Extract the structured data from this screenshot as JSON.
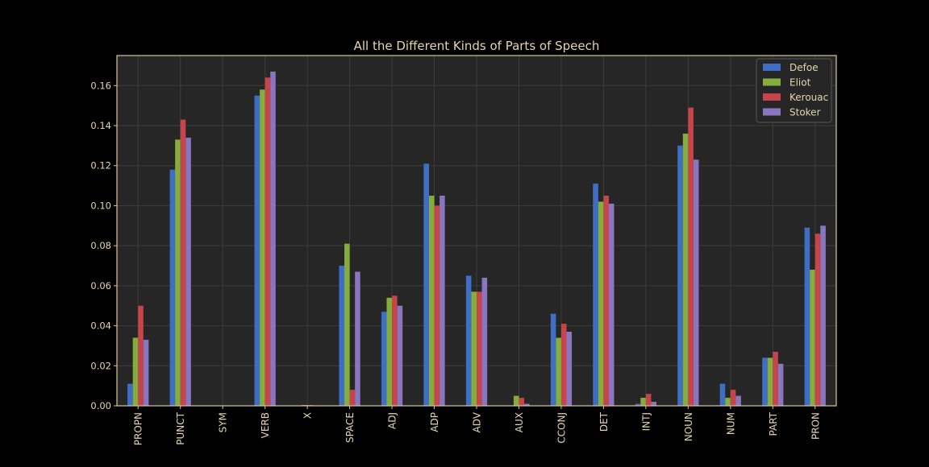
{
  "chart_data": {
    "type": "bar",
    "title": "All the Different Kinds of Parts of Speech",
    "xlabel": "",
    "ylabel": "",
    "ylim": [
      0,
      0.175
    ],
    "yticks": [
      "0.00",
      "0.02",
      "0.04",
      "0.06",
      "0.08",
      "0.10",
      "0.12",
      "0.14",
      "0.16"
    ],
    "grid": true,
    "legend_position": "top-right",
    "categories": [
      "PROPN",
      "PUNCT",
      "SYM",
      "VERB",
      "X",
      "SPACE",
      "ADJ",
      "ADP",
      "ADV",
      "AUX",
      "CCONJ",
      "DET",
      "INTJ",
      "NOUN",
      "NUM",
      "PART",
      "PRON"
    ],
    "series": [
      {
        "name": "Defoe",
        "color": "#3f6fc4",
        "values": [
          0.011,
          0.118,
          0.0,
          0.155,
          0.0,
          0.07,
          0.047,
          0.121,
          0.065,
          0.0,
          0.046,
          0.111,
          0.001,
          0.13,
          0.011,
          0.024,
          0.089
        ]
      },
      {
        "name": "Eliot",
        "color": "#84ad3e",
        "values": [
          0.034,
          0.133,
          0.0,
          0.158,
          0.0004,
          0.081,
          0.054,
          0.105,
          0.057,
          0.005,
          0.034,
          0.102,
          0.004,
          0.136,
          0.004,
          0.024,
          0.068
        ]
      },
      {
        "name": "Kerouac",
        "color": "#c5454a",
        "values": [
          0.05,
          0.143,
          0.0,
          0.164,
          0.0004,
          0.008,
          0.055,
          0.1,
          0.057,
          0.004,
          0.041,
          0.105,
          0.006,
          0.149,
          0.008,
          0.027,
          0.086
        ]
      },
      {
        "name": "Stoker",
        "color": "#8a76be",
        "values": [
          0.033,
          0.134,
          0.0,
          0.167,
          0.0,
          0.067,
          0.05,
          0.105,
          0.064,
          0.001,
          0.037,
          0.101,
          0.002,
          0.123,
          0.005,
          0.021,
          0.09
        ]
      }
    ]
  }
}
